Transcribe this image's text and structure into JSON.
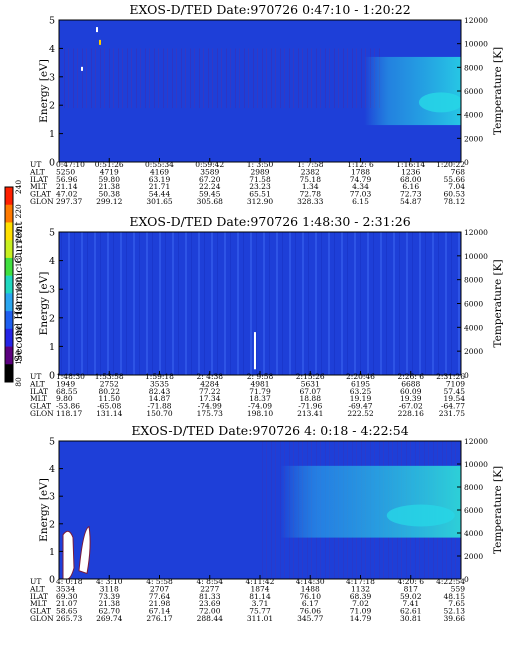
{
  "colors": {
    "background": "#1e3fd8",
    "plasma_cyan": "#27d6e6",
    "streak_red": "#8a2a78",
    "blob_white": "#ffffff"
  },
  "colorbar": {
    "label": "Second Harmonic Current",
    "ticks": [
      "80",
      "100",
      "120",
      "140",
      "160",
      "180",
      "200",
      "220",
      "240"
    ],
    "colors": [
      "#000000",
      "#5b007f",
      "#2424e6",
      "#1f5ff0",
      "#2aa6f0",
      "#20d8c0",
      "#40e040",
      "#c8f020",
      "#ffe000",
      "#ff7a00",
      "#ff2000"
    ]
  },
  "chart_data": [
    {
      "type": "heatmap",
      "title": "EXOS-D/TED   Date:970726  0:47:10 - 1:20:22",
      "ylabel": "Energy [eV]",
      "ylabel_right": "Temperature [K]",
      "ylim": [
        0,
        5
      ],
      "y_ticks": [
        "0",
        "1",
        "2",
        "3",
        "4",
        "5"
      ],
      "ylim_right": [
        0,
        12000
      ],
      "y_ticks_right": [
        "0",
        "2000",
        "4000",
        "6000",
        "8000",
        "10000",
        "12000"
      ],
      "ephemeris_labels": [
        "UT",
        "ALT",
        "ILAT",
        "MLT",
        "GLAT",
        "GLON"
      ],
      "ephemeris": [
        [
          "0:47:10",
          "0:51:26",
          "0:55:34",
          "0:59:42",
          "1: 3:50",
          "1: 7:58",
          "1:12: 6",
          "1:16:14",
          "1:20:22"
        ],
        [
          "5250",
          "4719",
          "4169",
          "3589",
          "2989",
          "2382",
          "1788",
          "1236",
          "768"
        ],
        [
          "56.96",
          "59.80",
          "63.19",
          "67.20",
          "71.58",
          "75.18",
          "74.79",
          "68.00",
          "55.66"
        ],
        [
          "21.14",
          "21.38",
          "21.71",
          "22.24",
          "23.23",
          "1.34",
          "4.34",
          "6.16",
          "7.04"
        ],
        [
          "47.02",
          "50.38",
          "54.44",
          "59.45",
          "65.51",
          "72.78",
          "77.03",
          "72.73",
          "60.53"
        ],
        [
          "297.37",
          "299.12",
          "301.65",
          "305.68",
          "312.90",
          "328.33",
          "6.15",
          "54.87",
          "78.12"
        ]
      ],
      "features": [
        "cyan plasma region above ~1.3 eV after 1:12",
        "dark streaks 2-4 eV"
      ]
    },
    {
      "type": "heatmap",
      "title": "EXOS-D/TED   Date:970726  1:48:30 - 2:31:26",
      "ylabel": "Energy [eV]",
      "ylabel_right": "Temperature [K]",
      "ylim": [
        0,
        5
      ],
      "y_ticks": [
        "0",
        "1",
        "2",
        "3",
        "4",
        "5"
      ],
      "ylim_right": [
        0,
        12000
      ],
      "y_ticks_right": [
        "0",
        "2000",
        "4000",
        "6000",
        "8000",
        "10000",
        "12000"
      ],
      "ephemeris_labels": [
        "UT",
        "ALT",
        "ILAT",
        "MLT",
        "GLAT",
        "GLON"
      ],
      "ephemeris": [
        [
          "1:48:30",
          "1:53:58",
          "1:59:18",
          "2: 4:38",
          "2: 9:58",
          "2:15:26",
          "2:20:46",
          "2:26: 6",
          "2:31:26"
        ],
        [
          "1949",
          "2752",
          "3535",
          "4284",
          "4981",
          "5631",
          "6195",
          "6688",
          "7109"
        ],
        [
          "68.55",
          "80.22",
          "82.43",
          "77.22",
          "71.79",
          "67.07",
          "63.25",
          "60.09",
          "57.45"
        ],
        [
          "9.80",
          "11.50",
          "14.87",
          "17.34",
          "18.37",
          "18.88",
          "19.19",
          "19.39",
          "19.54"
        ],
        [
          "-53.86",
          "-65.08",
          "-71.88",
          "-74.99",
          "-74.09",
          "-71.96",
          "-69.47",
          "-67.02",
          "-64.77"
        ],
        [
          "118.17",
          "131.14",
          "150.70",
          "175.73",
          "198.10",
          "213.41",
          "222.52",
          "228.16",
          "231.75"
        ]
      ],
      "features": [
        "uniform blue field",
        "single white vertical mark near 2:9:58"
      ]
    },
    {
      "type": "heatmap",
      "title": "EXOS-D/TED   Date:970726  4: 0:18 - 4:22:54",
      "ylabel": "Energy [eV]",
      "ylabel_right": "Temperature [K]",
      "ylim": [
        0,
        5
      ],
      "y_ticks": [
        "0",
        "1",
        "2",
        "3",
        "4",
        "5"
      ],
      "ylim_right": [
        0,
        12000
      ],
      "y_ticks_right": [
        "0",
        "2000",
        "4000",
        "6000",
        "8000",
        "10000",
        "12000"
      ],
      "ephemeris_labels": [
        "UT",
        "ALT",
        "ILAT",
        "MLT",
        "GLAT",
        "GLON"
      ],
      "ephemeris": [
        [
          "4: 0:18",
          "4: 3:10",
          "4: 5:58",
          "4: 8:54",
          "4:11:42",
          "4:14:30",
          "4:17:18",
          "4:20: 6",
          "4:22:54"
        ],
        [
          "3534",
          "3118",
          "2707",
          "2277",
          "1874",
          "1488",
          "1132",
          "817",
          "559"
        ],
        [
          "69.30",
          "73.39",
          "77.64",
          "81.33",
          "81.14",
          "76.10",
          "68.39",
          "59.02",
          "48.15"
        ],
        [
          "21.07",
          "21.38",
          "21.98",
          "23.69",
          "3.71",
          "6.17",
          "7.02",
          "7.41",
          "7.65"
        ],
        [
          "58.65",
          "62.70",
          "67.14",
          "72.00",
          "75.77",
          "76.06",
          "71.09",
          "62.61",
          "52.13"
        ],
        [
          "265.73",
          "269.74",
          "276.17",
          "288.44",
          "311.01",
          "345.77",
          "14.79",
          "30.81",
          "39.66"
        ]
      ],
      "features": [
        "white blobs near start below 2 eV",
        "cyan plasma region above ~1.5 eV after 4:11"
      ]
    }
  ]
}
